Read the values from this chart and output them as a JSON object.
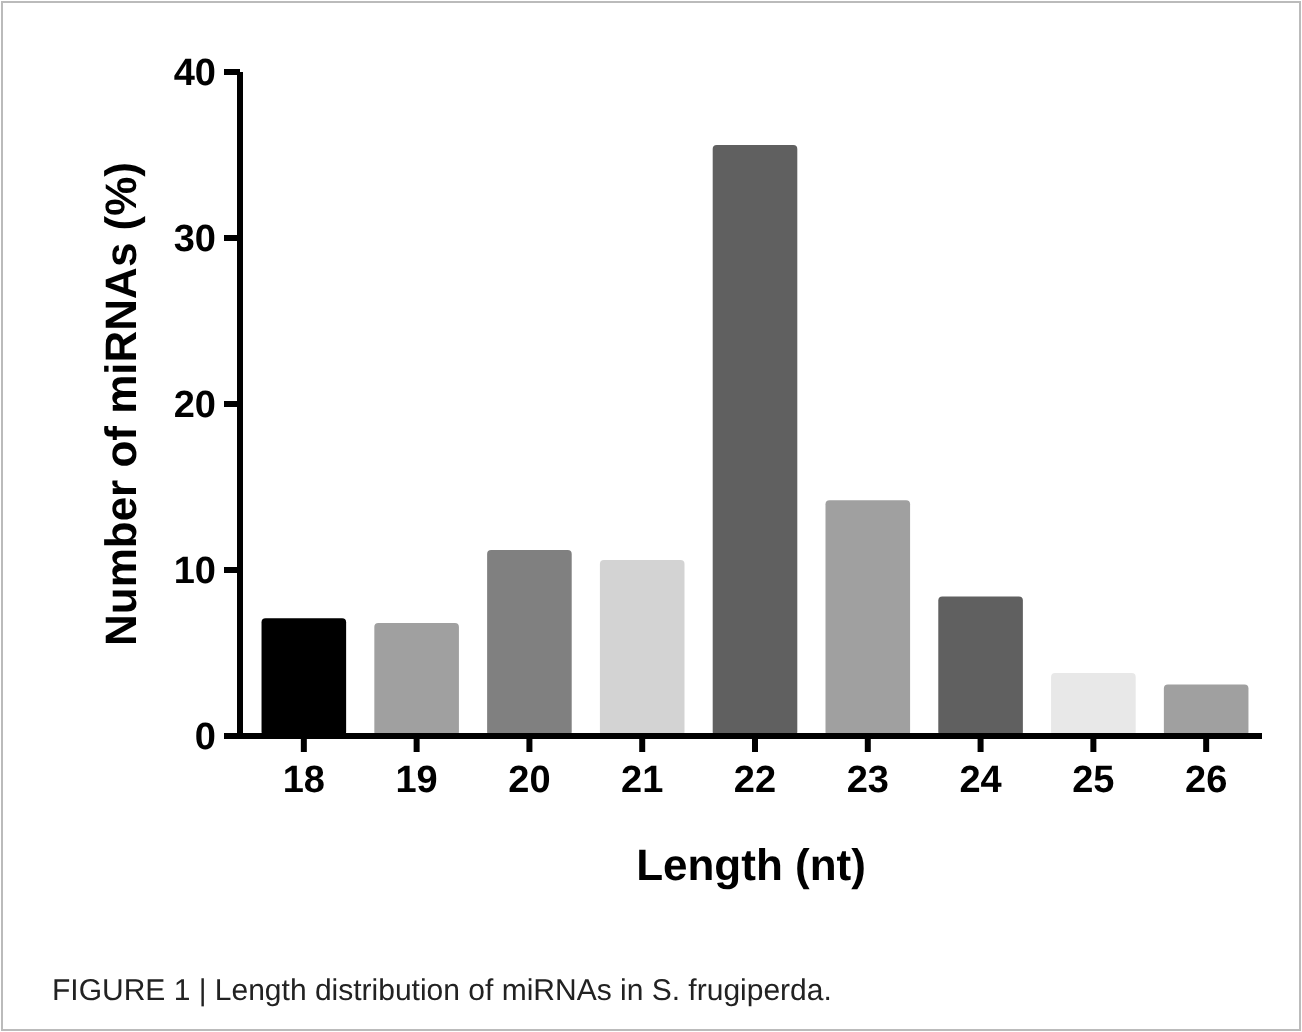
{
  "chart_data": {
    "type": "bar",
    "xlabel": "Length (nt)",
    "ylabel": "Number of miRNAs (%)",
    "categories": [
      "18",
      "19",
      "20",
      "21",
      "22",
      "23",
      "24",
      "25",
      "26"
    ],
    "values": [
      7.1,
      6.8,
      11.2,
      10.6,
      35.6,
      14.2,
      8.4,
      3.8,
      3.1
    ],
    "colors": [
      "#000000",
      "#a0a0a0",
      "#808080",
      "#d3d3d3",
      "#606060",
      "#a0a0a0",
      "#606060",
      "#e8e8e8",
      "#a0a0a0"
    ],
    "ylim": [
      0,
      40
    ],
    "yticks": [
      0,
      10,
      20,
      30,
      40
    ],
    "grid": false,
    "annotations": [
      "FIGURE 1 | Length distribution of miRNAs in S. frugiperda."
    ]
  }
}
